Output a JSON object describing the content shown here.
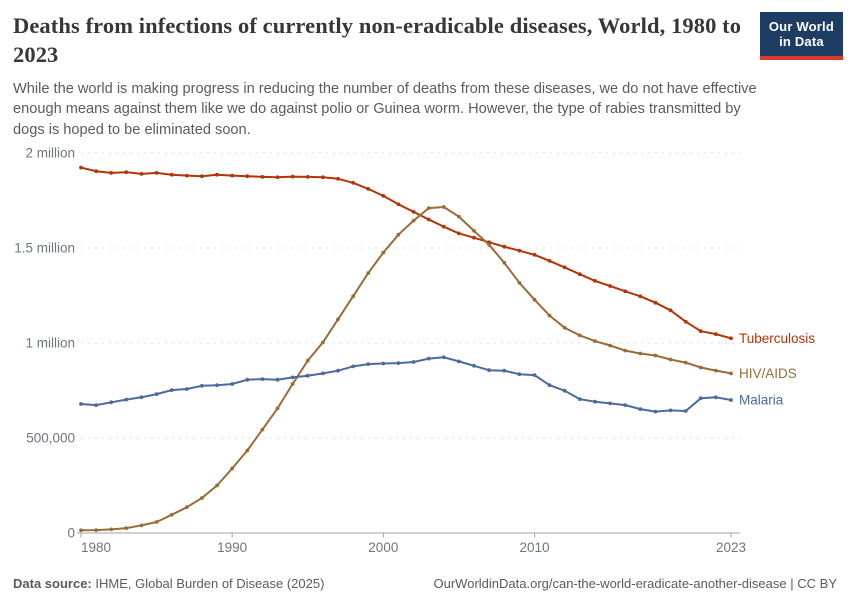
{
  "header": {
    "title": "Deaths from infections of currently non-eradicable diseases, World, 1980 to 2023",
    "subtitle": "While the world is making progress in reducing the number of deaths from these diseases, we do not have effective enough means against them like we do against polio or Guinea worm. However, the type of rabies transmitted by dogs is hoped to be eliminated soon.",
    "logo": {
      "line1": "Our World",
      "line2": "in Data",
      "bg_color": "#1d3d63",
      "stripe_color": "#d93a2b"
    }
  },
  "chart_data": {
    "type": "line",
    "title": "Deaths from infections of currently non-eradicable diseases",
    "entity": "World",
    "x": [
      1980,
      1981,
      1982,
      1983,
      1984,
      1985,
      1986,
      1987,
      1988,
      1989,
      1990,
      1991,
      1992,
      1993,
      1994,
      1995,
      1996,
      1997,
      1998,
      1999,
      2000,
      2001,
      2002,
      2003,
      2004,
      2005,
      2006,
      2007,
      2008,
      2009,
      2010,
      2011,
      2012,
      2013,
      2014,
      2015,
      2016,
      2017,
      2018,
      2019,
      2020,
      2021,
      2022,
      2023
    ],
    "series": [
      {
        "name": "Tuberculosis",
        "color": "#b13507",
        "values": [
          1923000,
          1904000,
          1895000,
          1899000,
          1890000,
          1895000,
          1886000,
          1881000,
          1878000,
          1886000,
          1881000,
          1878000,
          1874000,
          1872000,
          1876000,
          1874000,
          1872000,
          1864000,
          1843000,
          1811000,
          1774000,
          1730000,
          1690000,
          1650000,
          1612000,
          1577000,
          1554000,
          1530000,
          1507000,
          1486000,
          1464000,
          1432000,
          1398000,
          1362000,
          1327000,
          1300000,
          1272000,
          1246000,
          1212000,
          1172000,
          1112000,
          1062000,
          1047000,
          1025000
        ]
      },
      {
        "name": "HIV/AIDS",
        "color": "#996d39",
        "values": [
          14000,
          15000,
          19000,
          26000,
          40000,
          58000,
          96000,
          136000,
          184000,
          250000,
          340000,
          434000,
          544000,
          656000,
          784000,
          907000,
          1003000,
          1125000,
          1246000,
          1368000,
          1476000,
          1570000,
          1644000,
          1710000,
          1716000,
          1665000,
          1590000,
          1517000,
          1422000,
          1317000,
          1228000,
          1144000,
          1080000,
          1040000,
          1010000,
          987000,
          960000,
          945000,
          934000,
          913000,
          897000,
          871000,
          855000,
          840000
        ]
      },
      {
        "name": "Malaria",
        "color": "#4c6a9d",
        "values": [
          679000,
          673000,
          688000,
          702000,
          714000,
          731000,
          752000,
          758000,
          775000,
          778000,
          784000,
          807000,
          810000,
          807000,
          819000,
          828000,
          840000,
          854000,
          877000,
          889000,
          892000,
          894000,
          900000,
          918000,
          925000,
          903000,
          880000,
          857000,
          854000,
          836000,
          831000,
          778000,
          749000,
          705000,
          691000,
          682000,
          673000,
          652000,
          639000,
          645000,
          642000,
          709000,
          714000,
          700000
        ]
      }
    ],
    "ylim": [
      0,
      2000000
    ],
    "yticks": [
      {
        "value": 0,
        "label": "0"
      },
      {
        "value": 500000,
        "label": "500,000"
      },
      {
        "value": 1000000,
        "label": "1 million"
      },
      {
        "value": 1500000,
        "label": "1.5 million"
      },
      {
        "value": 2000000,
        "label": "2 million"
      }
    ],
    "xticks": [
      1980,
      1990,
      2000,
      2010,
      2023
    ],
    "grid": "horizontal-dashed",
    "legend_position": "end-of-line-labels",
    "axis_color": "#a3a3a3",
    "grid_color": "#dcdcdc"
  },
  "footer": {
    "source_label": "Data source:",
    "source_value": "IHME, Global Burden of Disease (2025)",
    "link": "OurWorldinData.org/can-the-world-eradicate-another-disease",
    "separator": "|",
    "license": "CC BY"
  }
}
